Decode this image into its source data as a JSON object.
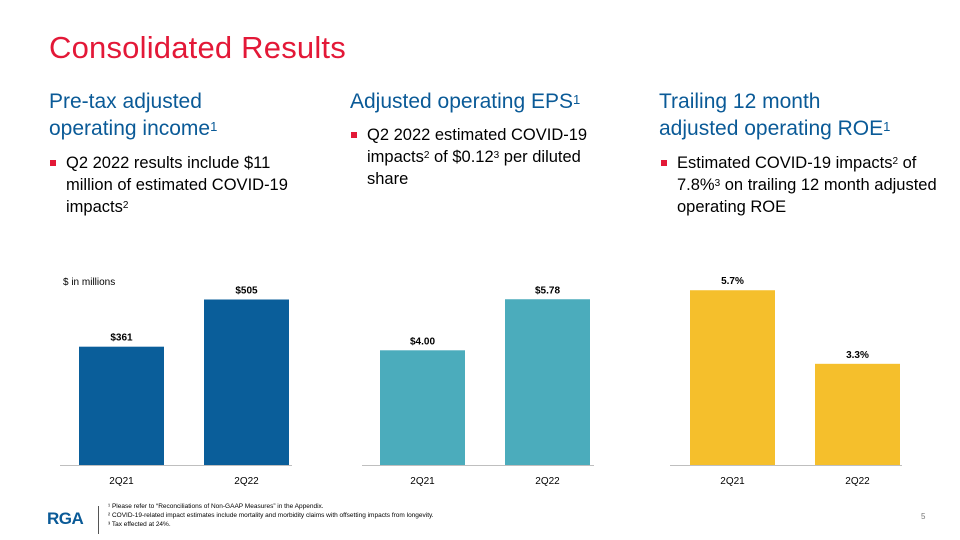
{
  "title": "Consolidated Results",
  "columns": [
    {
      "heading_lines": [
        "Pre-tax adjusted",
        "operating income"
      ],
      "heading_sup": "1",
      "bullet": {
        "parts": [
          "Q2 2022 results include $11 million of estimated COVID-19 impacts",
          "2"
        ]
      }
    },
    {
      "heading_lines": [
        "Adjusted operating EPS"
      ],
      "heading_sup": "1",
      "bullet": {
        "parts": [
          "Q2 2022 estimated COVID-19 impacts",
          "2",
          " of $0.12",
          "3",
          " per diluted share"
        ]
      }
    },
    {
      "heading_lines": [
        "Trailing 12 month",
        "adjusted operating ROE"
      ],
      "heading_sup": "1",
      "bullet": {
        "parts": [
          "Estimated COVID-19 impacts",
          "2",
          " of 7.8%",
          "3",
          " on trailing 12 month adjusted operating ROE"
        ]
      }
    }
  ],
  "unit_label": "$ in millions",
  "chart_data": [
    {
      "type": "bar",
      "title": "Pre-tax adjusted operating income",
      "categories": [
        "2Q21",
        "2Q22"
      ],
      "values": [
        361,
        505
      ],
      "labels": [
        "$361",
        "$505"
      ],
      "ylim": [
        0,
        595
      ],
      "color": "#0a5e9a"
    },
    {
      "type": "bar",
      "title": "Adjusted operating EPS",
      "categories": [
        "2Q21",
        "2Q22"
      ],
      "values": [
        4.0,
        5.78
      ],
      "labels": [
        "$4.00",
        "$5.78"
      ],
      "ylim": [
        0,
        6.8
      ],
      "color": "#4bacbc"
    },
    {
      "type": "bar",
      "title": "Trailing 12 month adjusted operating ROE",
      "categories": [
        "2Q21",
        "2Q22"
      ],
      "values": [
        5.7,
        3.3
      ],
      "labels": [
        "5.7%",
        "3.3%"
      ],
      "ylim": [
        0,
        6.36
      ],
      "color": "#f5bf2c"
    }
  ],
  "footer": {
    "logo": "RGA",
    "notes": [
      "¹ Please refer to “Reconciliations of Non-GAAP Measures” in the Appendix.",
      "² COVID-19-related impact estimates include mortality and morbidity claims with offsetting impacts from longevity.",
      "³ Tax effected at 24%."
    ],
    "page_number": "5"
  }
}
